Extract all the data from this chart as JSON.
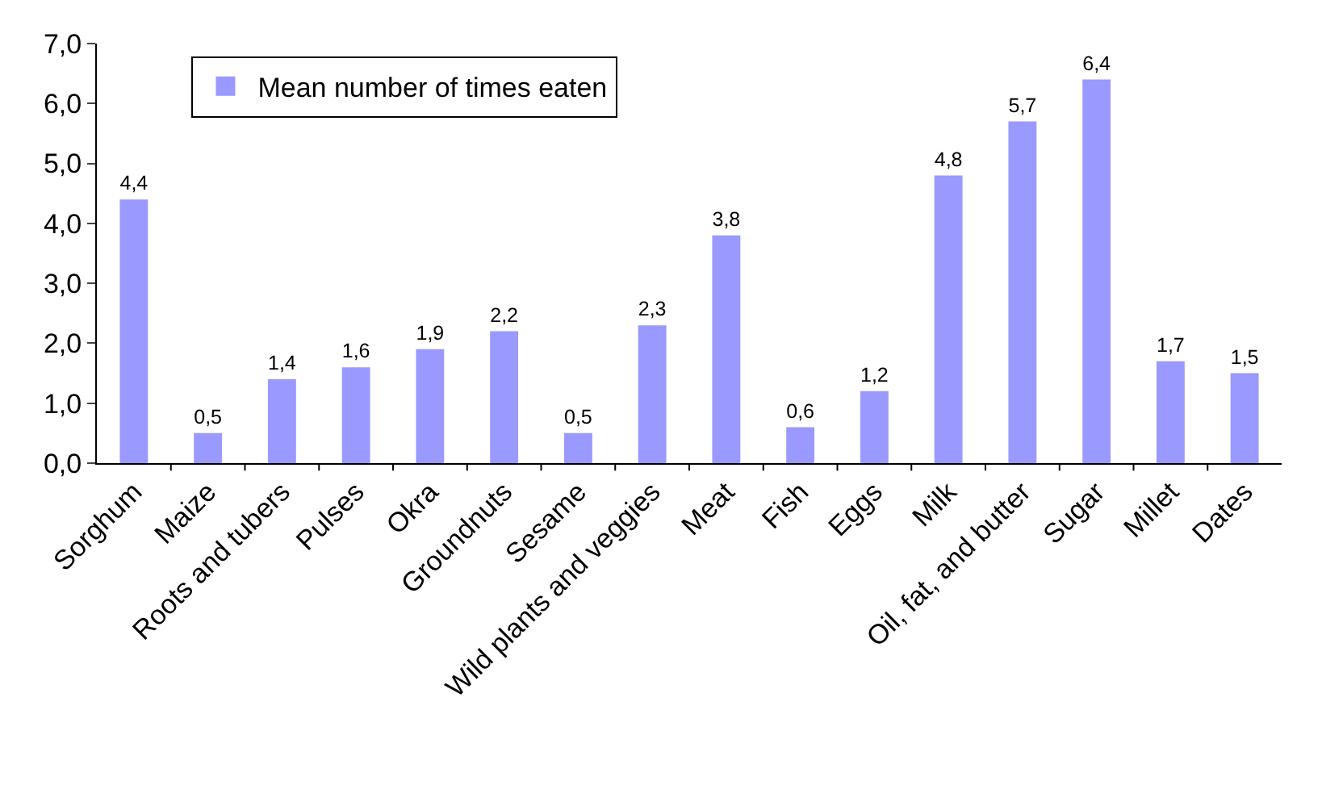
{
  "chart_data": {
    "type": "bar",
    "categories": [
      "Sorghum",
      "Maize",
      "Roots and tubers",
      "Pulses",
      "Okra",
      "Groundnuts",
      "Sesame",
      "Wild plants and veggies",
      "Meat",
      "Fish",
      "Eggs",
      "Milk",
      "Oil, fat, and butter",
      "Sugar",
      "Millet",
      "Dates"
    ],
    "series": [
      {
        "name": "Mean number of times eaten",
        "color": "#9999ff",
        "values": [
          4.4,
          0.5,
          1.4,
          1.6,
          1.9,
          2.2,
          0.5,
          2.3,
          3.8,
          0.6,
          1.2,
          4.8,
          5.7,
          6.4,
          1.7,
          1.5
        ],
        "value_labels": [
          "4,4",
          "0,5",
          "1,4",
          "1,6",
          "1,9",
          "2,2",
          "0,5",
          "2,3",
          "3,8",
          "0,6",
          "1,2",
          "4,8",
          "5,7",
          "6,4",
          "1,7",
          "1,5"
        ]
      }
    ],
    "ylim": [
      0,
      7
    ],
    "yticks": [
      {
        "value": 0,
        "label": "0,0"
      },
      {
        "value": 1,
        "label": "1,0"
      },
      {
        "value": 2,
        "label": "2,0"
      },
      {
        "value": 3,
        "label": "3,0"
      },
      {
        "value": 4,
        "label": "4,0"
      },
      {
        "value": 5,
        "label": "5,0"
      },
      {
        "value": 6,
        "label": "6,0"
      },
      {
        "value": 7,
        "label": "7,0"
      }
    ],
    "grid": false,
    "legend": "top left"
  }
}
